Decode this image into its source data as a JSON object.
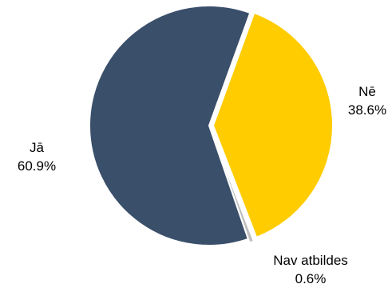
{
  "chart_data": {
    "type": "pie",
    "title": "",
    "legend": "none",
    "slices": [
      {
        "label": "Nē",
        "value": 38.6,
        "value_label": "38.6%",
        "color": "#FFCC00"
      },
      {
        "label": "Nav atbildes",
        "value": 0.6,
        "value_label": "0.6%",
        "color": "#BFBFBF"
      },
      {
        "label": "Jā",
        "value": 60.9,
        "value_label": "60.9%",
        "color": "#3A4F6A"
      }
    ]
  }
}
